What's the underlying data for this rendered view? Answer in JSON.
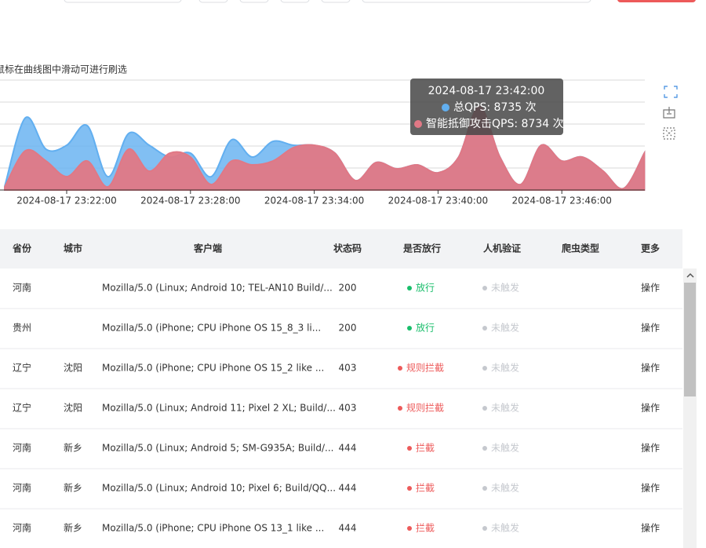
{
  "chart_data": {
    "type": "area",
    "hint": "鼠标在曲线图中滑动可进行刷选",
    "categories": [
      null,
      null,
      null,
      "2024-08-17 23:22:00",
      null,
      null,
      null,
      null,
      null,
      "2024-08-17 23:28:00",
      null,
      null,
      null,
      null,
      null,
      "2024-08-17 23:34:00",
      null,
      null,
      null,
      null,
      null,
      "2024-08-17 23:40:00",
      null,
      null,
      null,
      null,
      null,
      "2024-08-17 23:46:00",
      null,
      null,
      null,
      null
    ],
    "series": [
      {
        "color": "#62aff0",
        "values": [
          410,
          7540,
          4260,
          4670,
          6720,
          1390,
          5900,
          4670,
          3440,
          3850,
          1390,
          5250,
          3440,
          5080,
          4670,
          4670,
          3850,
          980,
          2870,
          2210,
          2620,
          1800,
          3440,
          8735,
          3440,
          570,
          4670,
          3030,
          3440,
          1970,
          160,
          3850
        ]
      },
      {
        "color": "#e07885",
        "values": [
          330,
          4100,
          3030,
          1390,
          3030,
          330,
          4260,
          1970,
          3850,
          3440,
          570,
          3030,
          2620,
          3030,
          4430,
          4670,
          3850,
          980,
          2870,
          2210,
          2620,
          1800,
          3440,
          8734,
          3440,
          570,
          4670,
          3030,
          3440,
          1970,
          160,
          3850
        ]
      }
    ],
    "ylim": [
      0,
      11480
    ],
    "tooltip": {
      "title": "2024-08-17 23:42:00",
      "items": [
        "总QPS: 8735 次",
        "智能抵御攻击QPS: 8734 次"
      ]
    }
  },
  "table": {
    "headers": [
      "省份",
      "城市",
      "客户端",
      "状态码",
      "是否放行",
      "人机验证",
      "爬虫类型",
      "更多"
    ],
    "rows": [
      [
        "河南",
        null,
        "Mozilla/5.0 (Linux; Android 10; TEL-AN10 Build/...",
        "200",
        {
          "text": "放行",
          "color": "#19be6b"
        },
        {
          "text": "未触发",
          "color": "#c5c8ce"
        },
        null,
        "操作"
      ],
      [
        "贵州",
        null,
        "Mozilla/5.0 (iPhone; CPU iPhone OS 15_8_3 li...",
        "200",
        {
          "text": "放行",
          "color": "#19be6b"
        },
        {
          "text": "未触发",
          "color": "#c5c8ce"
        },
        null,
        "操作"
      ],
      [
        "辽宁",
        "沈阳",
        "Mozilla/5.0 (iPhone; CPU iPhone OS 15_2 like ...",
        "403",
        {
          "text": "规则拦截",
          "color": "#ed5a5a"
        },
        {
          "text": "未触发",
          "color": "#c5c8ce"
        },
        null,
        "操作"
      ],
      [
        "辽宁",
        "沈阳",
        "Mozilla/5.0 (Linux; Android 11; Pixel 2 XL; Build/...",
        "403",
        {
          "text": "规则拦截",
          "color": "#ed5a5a"
        },
        {
          "text": "未触发",
          "color": "#c5c8ce"
        },
        null,
        "操作"
      ],
      [
        "河南",
        "新乡",
        "Mozilla/5.0 (Linux; Android 5; SM-G935A; Build/...",
        "444",
        {
          "text": "拦截",
          "color": "#ed5a5a"
        },
        {
          "text": "未触发",
          "color": "#c5c8ce"
        },
        null,
        "操作"
      ],
      [
        "河南",
        "新乡",
        "Mozilla/5.0 (Linux; Android 10; Pixel 6; Build/QQ...",
        "444",
        {
          "text": "拦截",
          "color": "#ed5a5a"
        },
        {
          "text": "未触发",
          "color": "#c5c8ce"
        },
        null,
        "操作"
      ],
      [
        "河南",
        "新乡",
        "Mozilla/5.0 (iPhone; CPU iPhone OS 13_1 like ...",
        "444",
        {
          "text": "拦截",
          "color": "#ed5a5a"
        },
        {
          "text": "未触发",
          "color": "#c5c8ce"
        },
        null,
        "操作"
      ]
    ]
  }
}
